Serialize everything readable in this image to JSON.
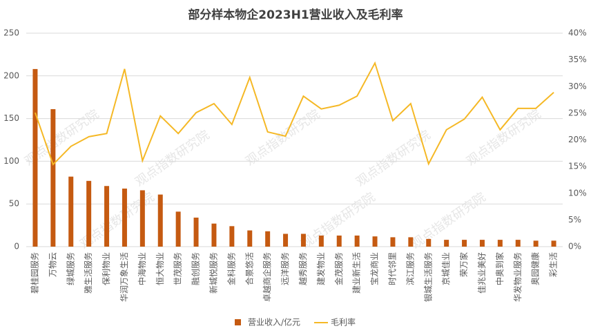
{
  "chart_data": {
    "type": "bar",
    "title": "部分样本物企2023H1营业收入及毛利率",
    "watermark": "观点指数研究院",
    "categories": [
      "碧桂园服务",
      "万物云",
      "绿城服务",
      "雅生活服务",
      "保利物业",
      "华润万象生活",
      "中海物业",
      "恒大物业",
      "世茂服务",
      "融创服务",
      "新城悦服务",
      "金科服务",
      "合景悠活",
      "卓越商企服务",
      "远洋服务",
      "越秀服务",
      "建发物业",
      "金茂服务",
      "建业新生活",
      "宝龙商业",
      "时代邻里",
      "滨江服务",
      "银城生活服务",
      "京城佳业",
      "荣万家",
      "佳兆业美好",
      "中奥到家",
      "华发物业服务",
      "奥园健康",
      "彩生活"
    ],
    "series": [
      {
        "name": "营业收入/亿元",
        "type": "bar",
        "color": "#c55a11",
        "values": [
          208,
          161,
          82,
          77,
          71,
          68,
          66,
          61,
          41,
          34,
          27,
          24,
          19,
          18,
          15,
          15,
          13,
          13,
          13,
          12,
          11,
          11,
          9,
          8,
          8,
          8,
          8,
          8,
          7,
          7
        ]
      },
      {
        "name": "毛利率",
        "type": "line",
        "axis": "y2",
        "color": "#f5b825",
        "values": [
          25.1,
          15.4,
          18.8,
          20.6,
          21.2,
          33.3,
          16.1,
          24.5,
          21.2,
          25.1,
          26.8,
          22.9,
          31.7,
          21.5,
          20.7,
          28.2,
          25.8,
          26.5,
          28.2,
          34.4,
          23.6,
          26.8,
          15.5,
          21.9,
          23.9,
          28.0,
          21.9,
          25.9,
          25.9,
          28.9
        ]
      }
    ],
    "ylim": [
      0,
      250
    ],
    "yticks": [
      0,
      50,
      100,
      150,
      200,
      250
    ],
    "y2lim": [
      0,
      40
    ],
    "y2ticks": [
      {
        "value": 0,
        "label": "0%"
      },
      {
        "value": 5,
        "label": "5%"
      },
      {
        "value": 10,
        "label": "10%"
      },
      {
        "value": 15,
        "label": "15%"
      },
      {
        "value": 20,
        "label": "20%"
      },
      {
        "value": 25,
        "label": "25%"
      },
      {
        "value": 30,
        "label": "30%"
      },
      {
        "value": 35,
        "label": "35%"
      },
      {
        "value": 40,
        "label": "40%"
      }
    ],
    "grid": true
  }
}
